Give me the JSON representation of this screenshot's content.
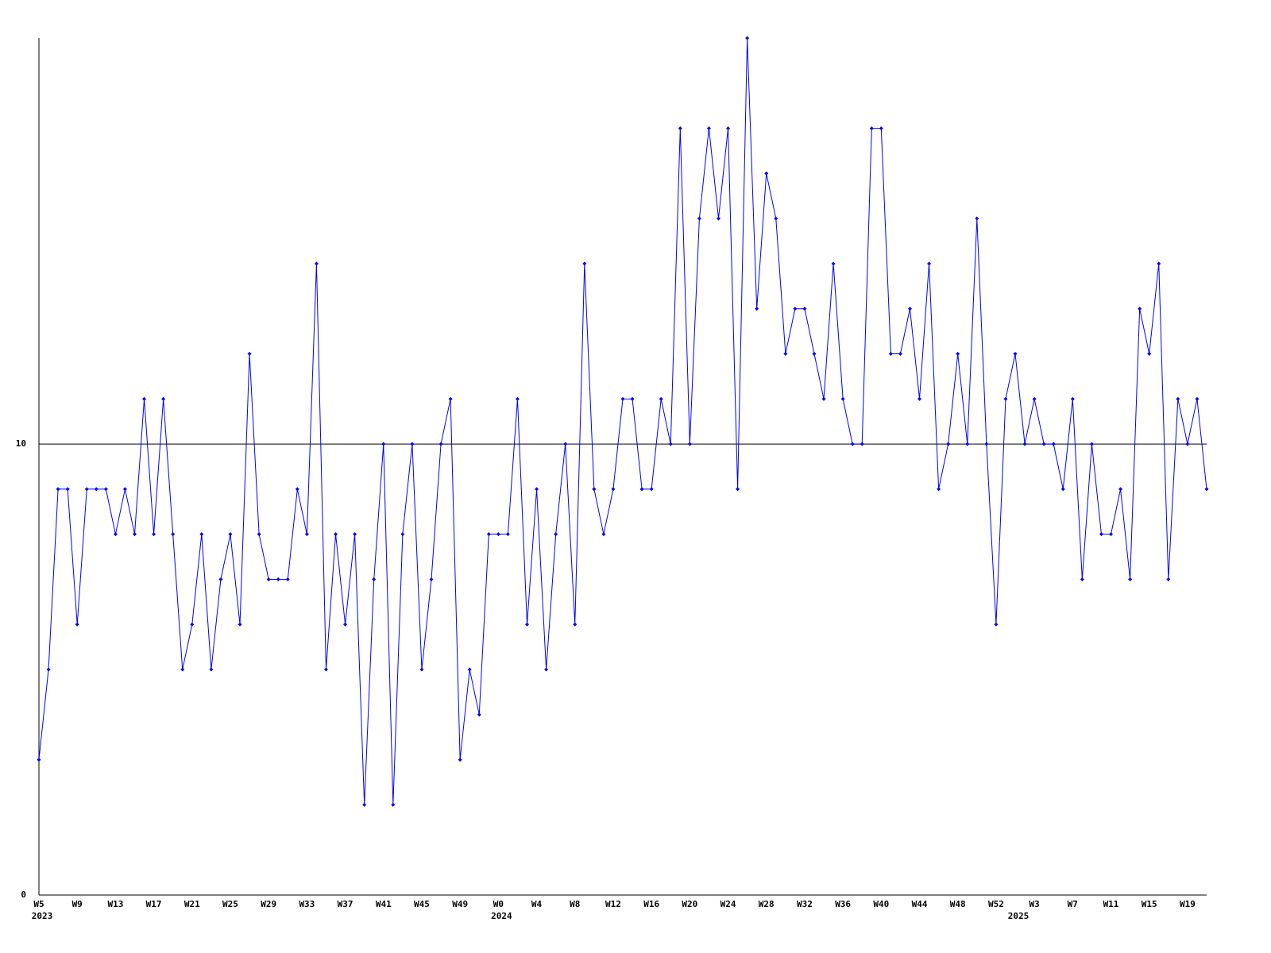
{
  "chart_data": {
    "type": "line",
    "categories": [
      "W5",
      null,
      null,
      null,
      "W9",
      null,
      null,
      null,
      "W13",
      null,
      null,
      null,
      "W17",
      null,
      null,
      null,
      "W21",
      null,
      null,
      null,
      "W25",
      null,
      null,
      null,
      "W29",
      null,
      null,
      null,
      "W33",
      null,
      null,
      null,
      "W37",
      null,
      null,
      null,
      "W41",
      null,
      null,
      null,
      "W45",
      null,
      null,
      null,
      "W49",
      null,
      null,
      null,
      "W0",
      null,
      null,
      null,
      "W4",
      null,
      null,
      null,
      "W8",
      null,
      null,
      null,
      "W12",
      null,
      null,
      null,
      "W16",
      null,
      null,
      null,
      "W20",
      null,
      null,
      null,
      "W24",
      null,
      null,
      null,
      "W28",
      null,
      null,
      null,
      "W32",
      null,
      null,
      null,
      "W36",
      null,
      null,
      null,
      "W40",
      null,
      null,
      null,
      "W44",
      null,
      null,
      null,
      "W48",
      null,
      null,
      null,
      "W52",
      null,
      null,
      null,
      "W3",
      null,
      null,
      null,
      "W7",
      null,
      null,
      null,
      "W11",
      null,
      null,
      null,
      "W15",
      null,
      null,
      null,
      "W19",
      null,
      null
    ],
    "year_labels": [
      "2023",
      null,
      null,
      null,
      null,
      null,
      null,
      null,
      null,
      null,
      null,
      null,
      null,
      null,
      null,
      null,
      null,
      null,
      null,
      null,
      null,
      null,
      null,
      null,
      null,
      null,
      null,
      null,
      null,
      null,
      null,
      null,
      null,
      null,
      null,
      null,
      null,
      null,
      null,
      null,
      null,
      null,
      null,
      null,
      null,
      null,
      null,
      null,
      "2024",
      null,
      null,
      null,
      null,
      null,
      null,
      null,
      null,
      null,
      null,
      null,
      null,
      null,
      null,
      null,
      null,
      null,
      null,
      null,
      null,
      null,
      null,
      null,
      null,
      null,
      null,
      null,
      null,
      null,
      null,
      null,
      null,
      null,
      null,
      null,
      null,
      null,
      null,
      null,
      null,
      null,
      null,
      null,
      null,
      null,
      null,
      null,
      null,
      null,
      null,
      null,
      null,
      null,
      "2025",
      null,
      null,
      null,
      null,
      null,
      null,
      null,
      null,
      null,
      null,
      null,
      null,
      null,
      null,
      null,
      null,
      null,
      null,
      null,
      null,
      null
    ],
    "series": [
      {
        "color": "#0000ff",
        "values": [
          3,
          5,
          9,
          9,
          6,
          9,
          9,
          9,
          8,
          9,
          8,
          11,
          8,
          11,
          8,
          5,
          6,
          8,
          5,
          7,
          8,
          6,
          12,
          8,
          7,
          7,
          7,
          9,
          8,
          14,
          5,
          8,
          6,
          8,
          2,
          7,
          10,
          2,
          8,
          10,
          5,
          7,
          10,
          11,
          3,
          5,
          4,
          8,
          8,
          8,
          11,
          6,
          9,
          5,
          8,
          10,
          6,
          14,
          9,
          8,
          9,
          11,
          11,
          9,
          9,
          11,
          10,
          17,
          10,
          15,
          17,
          15,
          17,
          9,
          19,
          13,
          16,
          15,
          12,
          13,
          13,
          12,
          11,
          14,
          11,
          10,
          10,
          17,
          17,
          12,
          12,
          13,
          11,
          14,
          9,
          10,
          12,
          10,
          15,
          10,
          6,
          11,
          12,
          10,
          11,
          10,
          10,
          9,
          11,
          7,
          10,
          8,
          8,
          9,
          7,
          13,
          12,
          14,
          7,
          11,
          10,
          11,
          9
        ]
      }
    ],
    "ylim": [
      0,
      19
    ],
    "yticks": [
      0,
      10
    ],
    "grid": true
  }
}
